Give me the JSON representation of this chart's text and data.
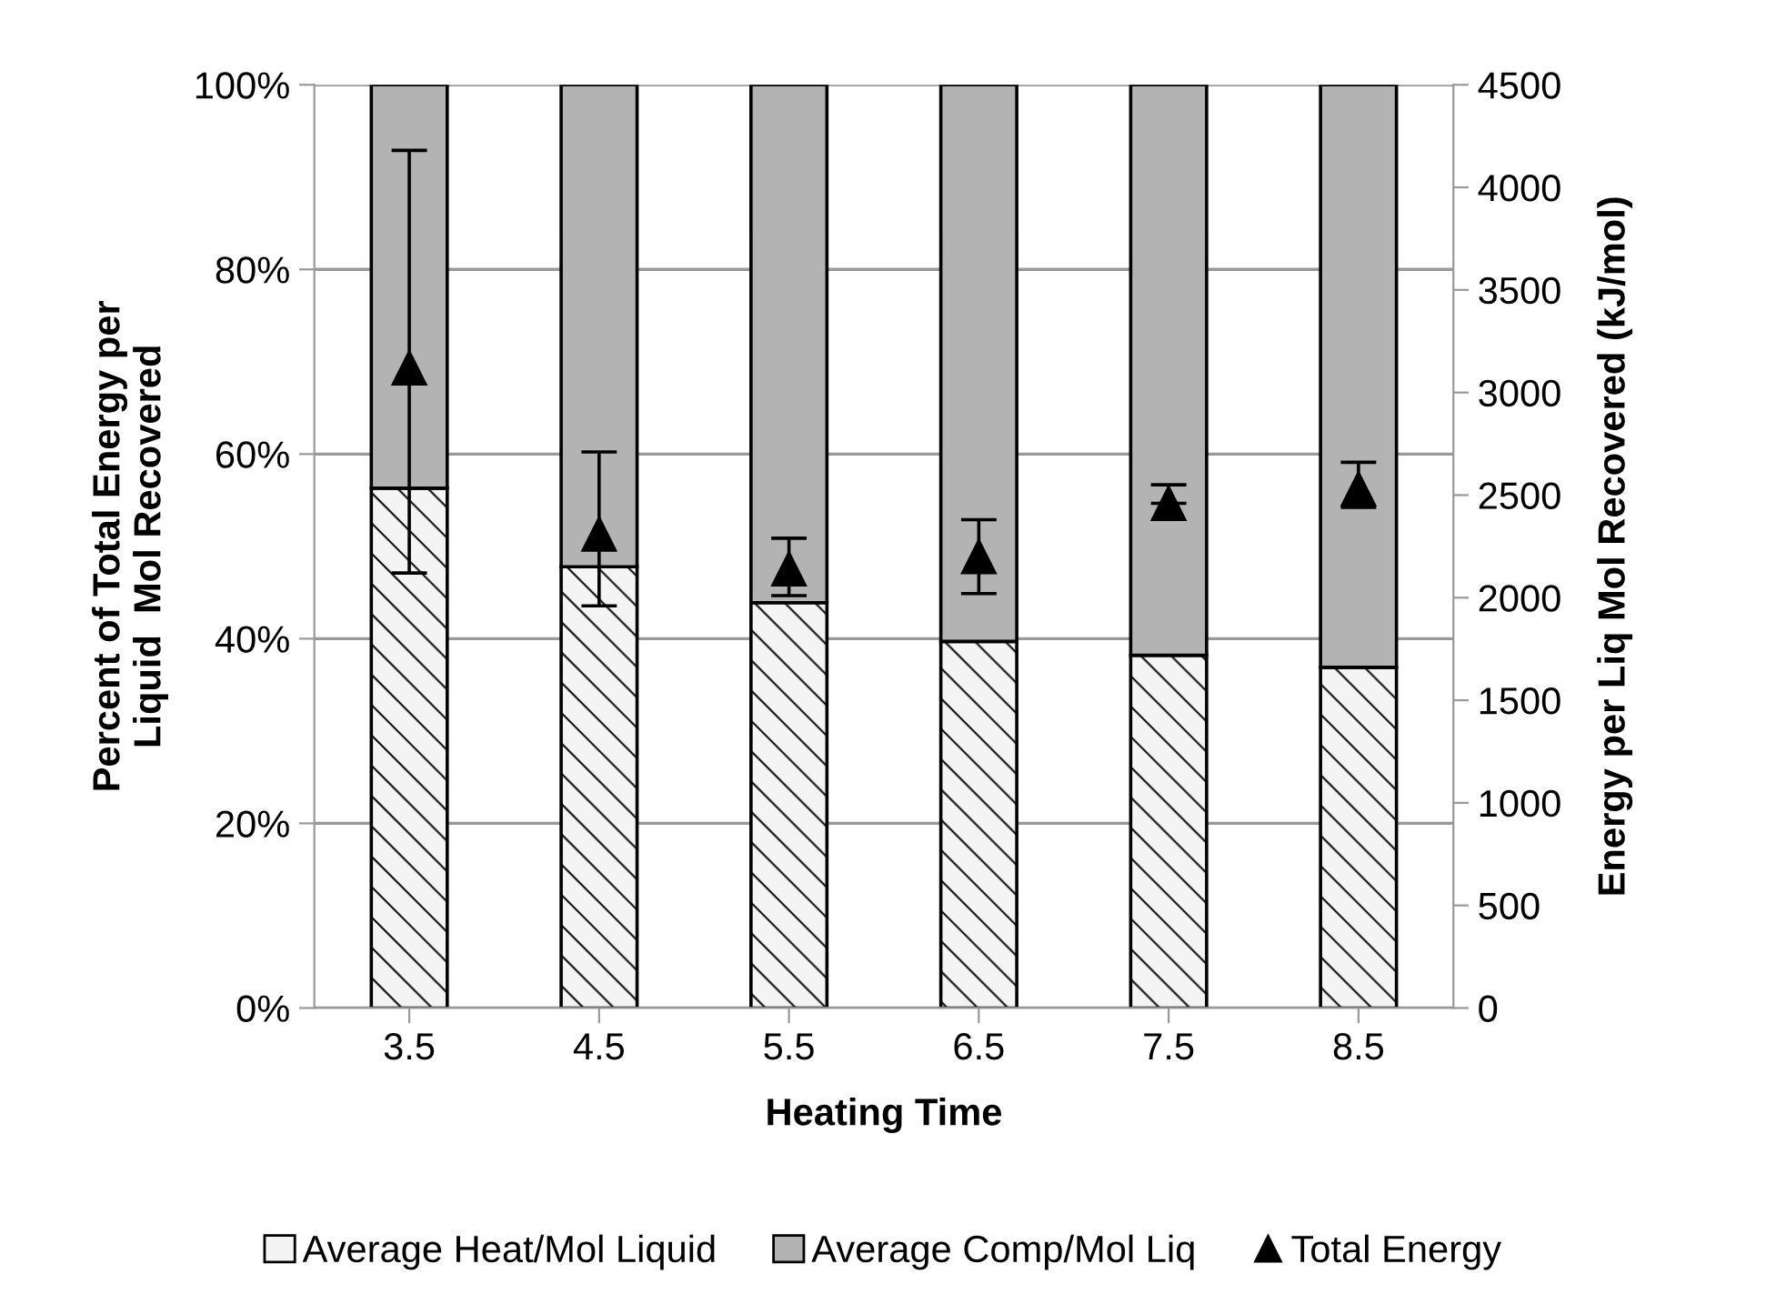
{
  "chart_data": {
    "type": "bar",
    "stacked": true,
    "xlabel": "Heating Time",
    "ylabel": "Percent of Total Energy per\nLiquid  Mol Recovered",
    "y2label": "Energy per Liq Mol Recovered (kJ/mol)",
    "categories": [
      "3.5",
      "4.5",
      "5.5",
      "6.5",
      "7.5",
      "8.5"
    ],
    "series": [
      {
        "name": "Average Heat/Mol Liquid",
        "color": "#f4f4f4",
        "values": [
          56.3,
          47.8,
          43.9,
          39.7,
          38.2,
          36.9
        ]
      },
      {
        "name": "Average Comp/Mol Liq",
        "color": "#b3b3b3",
        "values": [
          43.7,
          52.2,
          56.1,
          60.3,
          61.8,
          63.1
        ]
      },
      {
        "name": "Total Energy",
        "type": "scatter",
        "axis": "y2",
        "color": "#000000",
        "marker": "triangle",
        "values": [
          3120,
          2310,
          2140,
          2200,
          2460,
          2530
        ],
        "errors": [
          [
            2120,
            4180
          ],
          [
            1960,
            2710
          ],
          [
            2010,
            2290
          ],
          [
            2020,
            2380
          ],
          [
            2460,
            2550
          ],
          [
            2440,
            2660
          ]
        ]
      }
    ],
    "ylim": [
      0,
      100
    ],
    "yticks": [
      {
        "value": 0,
        "label": "0%"
      },
      {
        "value": 20,
        "label": "20%"
      },
      {
        "value": 40,
        "label": "40%"
      },
      {
        "value": 60,
        "label": "60%"
      },
      {
        "value": 80,
        "label": "80%"
      },
      {
        "value": 100,
        "label": "100%"
      }
    ],
    "y2lim": [
      0,
      4500
    ],
    "y2ticks": [
      0,
      500,
      1000,
      1500,
      2000,
      2500,
      3000,
      3500,
      4000,
      4500
    ],
    "grid": "y",
    "legend": "bottom"
  }
}
